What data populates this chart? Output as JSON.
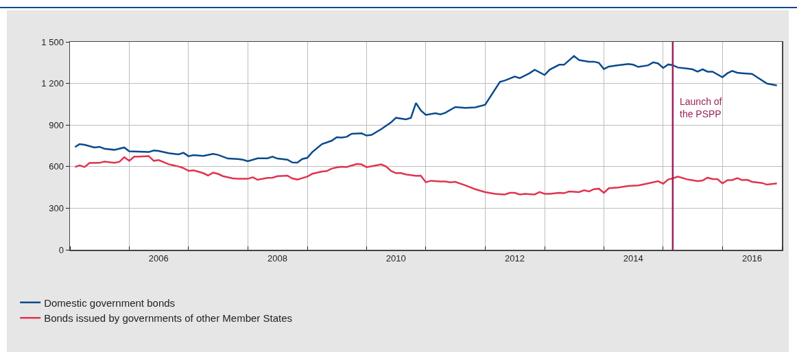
{
  "chart_data": {
    "type": "line",
    "xlim": [
      "2005-01-01",
      "2017-01-01"
    ],
    "xticks": [
      {
        "value": "2005-01-01",
        "label": null
      },
      {
        "value": "2006-01-01",
        "label": null
      },
      {
        "value": "2006-07-01",
        "label": "2006"
      },
      {
        "value": "2007-01-01",
        "label": null
      },
      {
        "value": "2008-01-01",
        "label": null
      },
      {
        "value": "2008-07-01",
        "label": "2008"
      },
      {
        "value": "2009-01-01",
        "label": null
      },
      {
        "value": "2010-01-01",
        "label": null
      },
      {
        "value": "2010-07-01",
        "label": "2010"
      },
      {
        "value": "2011-01-01",
        "label": null
      },
      {
        "value": "2012-01-01",
        "label": null
      },
      {
        "value": "2012-07-01",
        "label": "2012"
      },
      {
        "value": "2013-01-01",
        "label": null
      },
      {
        "value": "2014-01-01",
        "label": null
      },
      {
        "value": "2014-07-01",
        "label": "2014"
      },
      {
        "value": "2015-01-01",
        "label": null
      },
      {
        "value": "2016-01-01",
        "label": null
      },
      {
        "value": "2016-07-01",
        "label": "2016"
      },
      {
        "value": "2017-01-01",
        "label": null
      }
    ],
    "ylim": [
      0,
      1500
    ],
    "yticks": [
      0,
      300,
      600,
      900,
      {
        "value": 1200,
        "label": "1 200"
      },
      {
        "value": 1500,
        "label": "1 500"
      }
    ],
    "grid": true,
    "legend": "bottom left",
    "marker": "none",
    "line_style": "solid",
    "ref_lines": [
      {
        "axis": "x",
        "value": "2015-03-01",
        "label": "Launch of\nthe PSPP",
        "color": "#9c1f5c"
      }
    ],
    "series": [
      {
        "name": "Domestic government bonds",
        "color": "#0a4a8c",
        "x": [
          "2005-02",
          "2005-03",
          "2005-04",
          "2005-06",
          "2005-07",
          "2005-08",
          "2005-10",
          "2005-12",
          "2006-01",
          "2006-05",
          "2006-06",
          "2006-07",
          "2006-09",
          "2006-11",
          "2006-12",
          "2007-01",
          "2007-02",
          "2007-04",
          "2007-06",
          "2007-07",
          "2007-09",
          "2007-11",
          "2007-12",
          "2008-01",
          "2008-03",
          "2008-05",
          "2008-06",
          "2008-07",
          "2008-09",
          "2008-10",
          "2008-11",
          "2008-12",
          "2009-01",
          "2009-02",
          "2009-04",
          "2009-06",
          "2009-07",
          "2009-08",
          "2009-09",
          "2009-10",
          "2009-12",
          "2010-01",
          "2010-02",
          "2010-04",
          "2010-06",
          "2010-07",
          "2010-09",
          "2010-10",
          "2010-11",
          "2010-12",
          "2011-01",
          "2011-03",
          "2011-04",
          "2011-05",
          "2011-07",
          "2011-09",
          "2011-11",
          "2012-01",
          "2012-04",
          "2012-05",
          "2012-07",
          "2012-08",
          "2012-10",
          "2012-11",
          "2013-01",
          "2013-02",
          "2013-04",
          "2013-05",
          "2013-07",
          "2013-08",
          "2013-10",
          "2013-11",
          "2013-12",
          "2014-01",
          "2014-02",
          "2014-04",
          "2014-06",
          "2014-07",
          "2014-08",
          "2014-10",
          "2014-11",
          "2014-12",
          "2015-01",
          "2015-02",
          "2015-03",
          "2015-04",
          "2015-06",
          "2015-07",
          "2015-08",
          "2015-09",
          "2015-10",
          "2015-11",
          "2016-01",
          "2016-02",
          "2016-03",
          "2016-04",
          "2016-05",
          "2016-07",
          "2016-08",
          "2016-10",
          "2016-12"
        ],
        "values": [
          741,
          762,
          757,
          738,
          743,
          729,
          721,
          738,
          710,
          705,
          716,
          713,
          697,
          688,
          700,
          675,
          683,
          677,
          692,
          685,
          658,
          655,
          650,
          639,
          660,
          660,
          672,
          658,
          650,
          630,
          629,
          655,
          663,
          705,
          762,
          787,
          812,
          809,
          815,
          837,
          840,
          824,
          829,
          870,
          919,
          952,
          941,
          952,
          1059,
          1005,
          973,
          985,
          977,
          988,
          1030,
          1023,
          1027,
          1046,
          1211,
          1221,
          1250,
          1238,
          1274,
          1299,
          1261,
          1299,
          1335,
          1335,
          1398,
          1369,
          1357,
          1357,
          1349,
          1304,
          1322,
          1332,
          1340,
          1335,
          1319,
          1331,
          1352,
          1344,
          1312,
          1337,
          1332,
          1315,
          1307,
          1302,
          1285,
          1302,
          1285,
          1285,
          1245,
          1274,
          1290,
          1277,
          1274,
          1269,
          1245,
          1199,
          1186
        ]
      },
      {
        "name": "Bonds issued by governments of other Member States",
        "color": "#e0344f",
        "x": [
          "2005-02",
          "2005-03",
          "2005-04",
          "2005-05",
          "2005-07",
          "2005-08",
          "2005-10",
          "2005-11",
          "2005-12",
          "2006-01",
          "2006-02",
          "2006-03",
          "2006-05",
          "2006-06",
          "2006-07",
          "2006-09",
          "2006-11",
          "2006-12",
          "2007-01",
          "2007-02",
          "2007-04",
          "2007-05",
          "2007-06",
          "2007-07",
          "2007-08",
          "2007-10",
          "2007-11",
          "2008-01",
          "2008-02",
          "2008-03",
          "2008-05",
          "2008-06",
          "2008-07",
          "2008-09",
          "2008-10",
          "2008-11",
          "2009-01",
          "2009-02",
          "2009-04",
          "2009-05",
          "2009-06",
          "2009-07",
          "2009-08",
          "2009-09",
          "2009-11",
          "2009-12",
          "2010-01",
          "2010-04",
          "2010-05",
          "2010-06",
          "2010-07",
          "2010-08",
          "2010-09",
          "2010-11",
          "2010-12",
          "2011-01",
          "2011-02",
          "2011-04",
          "2011-05",
          "2011-06",
          "2011-07",
          "2011-09",
          "2011-11",
          "2012-01",
          "2012-03",
          "2012-05",
          "2012-06",
          "2012-07",
          "2012-08",
          "2012-09",
          "2012-11",
          "2012-12",
          "2013-01",
          "2013-02",
          "2013-04",
          "2013-05",
          "2013-06",
          "2013-08",
          "2013-09",
          "2013-10",
          "2013-11",
          "2013-12",
          "2014-01",
          "2014-02",
          "2014-04",
          "2014-06",
          "2014-08",
          "2014-10",
          "2014-12",
          "2015-01",
          "2015-02",
          "2015-03",
          "2015-04",
          "2015-06",
          "2015-08",
          "2015-09",
          "2015-10",
          "2015-11",
          "2015-12",
          "2016-01",
          "2016-02",
          "2016-03",
          "2016-04",
          "2016-05",
          "2016-06",
          "2016-07",
          "2016-09",
          "2016-10",
          "2016-12"
        ],
        "values": [
          597,
          609,
          597,
          626,
          627,
          636,
          627,
          634,
          668,
          642,
          672,
          672,
          676,
          642,
          647,
          617,
          601,
          589,
          569,
          573,
          553,
          536,
          556,
          548,
          531,
          515,
          512,
          512,
          523,
          505,
          518,
          520,
          531,
          535,
          515,
          507,
          528,
          548,
          564,
          568,
          586,
          594,
          599,
          597,
          619,
          616,
          596,
          616,
          601,
          568,
          553,
          553,
          543,
          533,
          535,
          487,
          498,
          492,
          492,
          487,
          490,
          465,
          437,
          416,
          404,
          399,
          411,
          411,
          399,
          403,
          399,
          417,
          404,
          404,
          411,
          408,
          421,
          416,
          429,
          421,
          437,
          441,
          411,
          444,
          449,
          460,
          464,
          479,
          495,
          477,
          507,
          515,
          528,
          507,
          495,
          500,
          520,
          510,
          510,
          479,
          503,
          503,
          517,
          503,
          505,
          490,
          482,
          470,
          479
        ]
      }
    ]
  }
}
